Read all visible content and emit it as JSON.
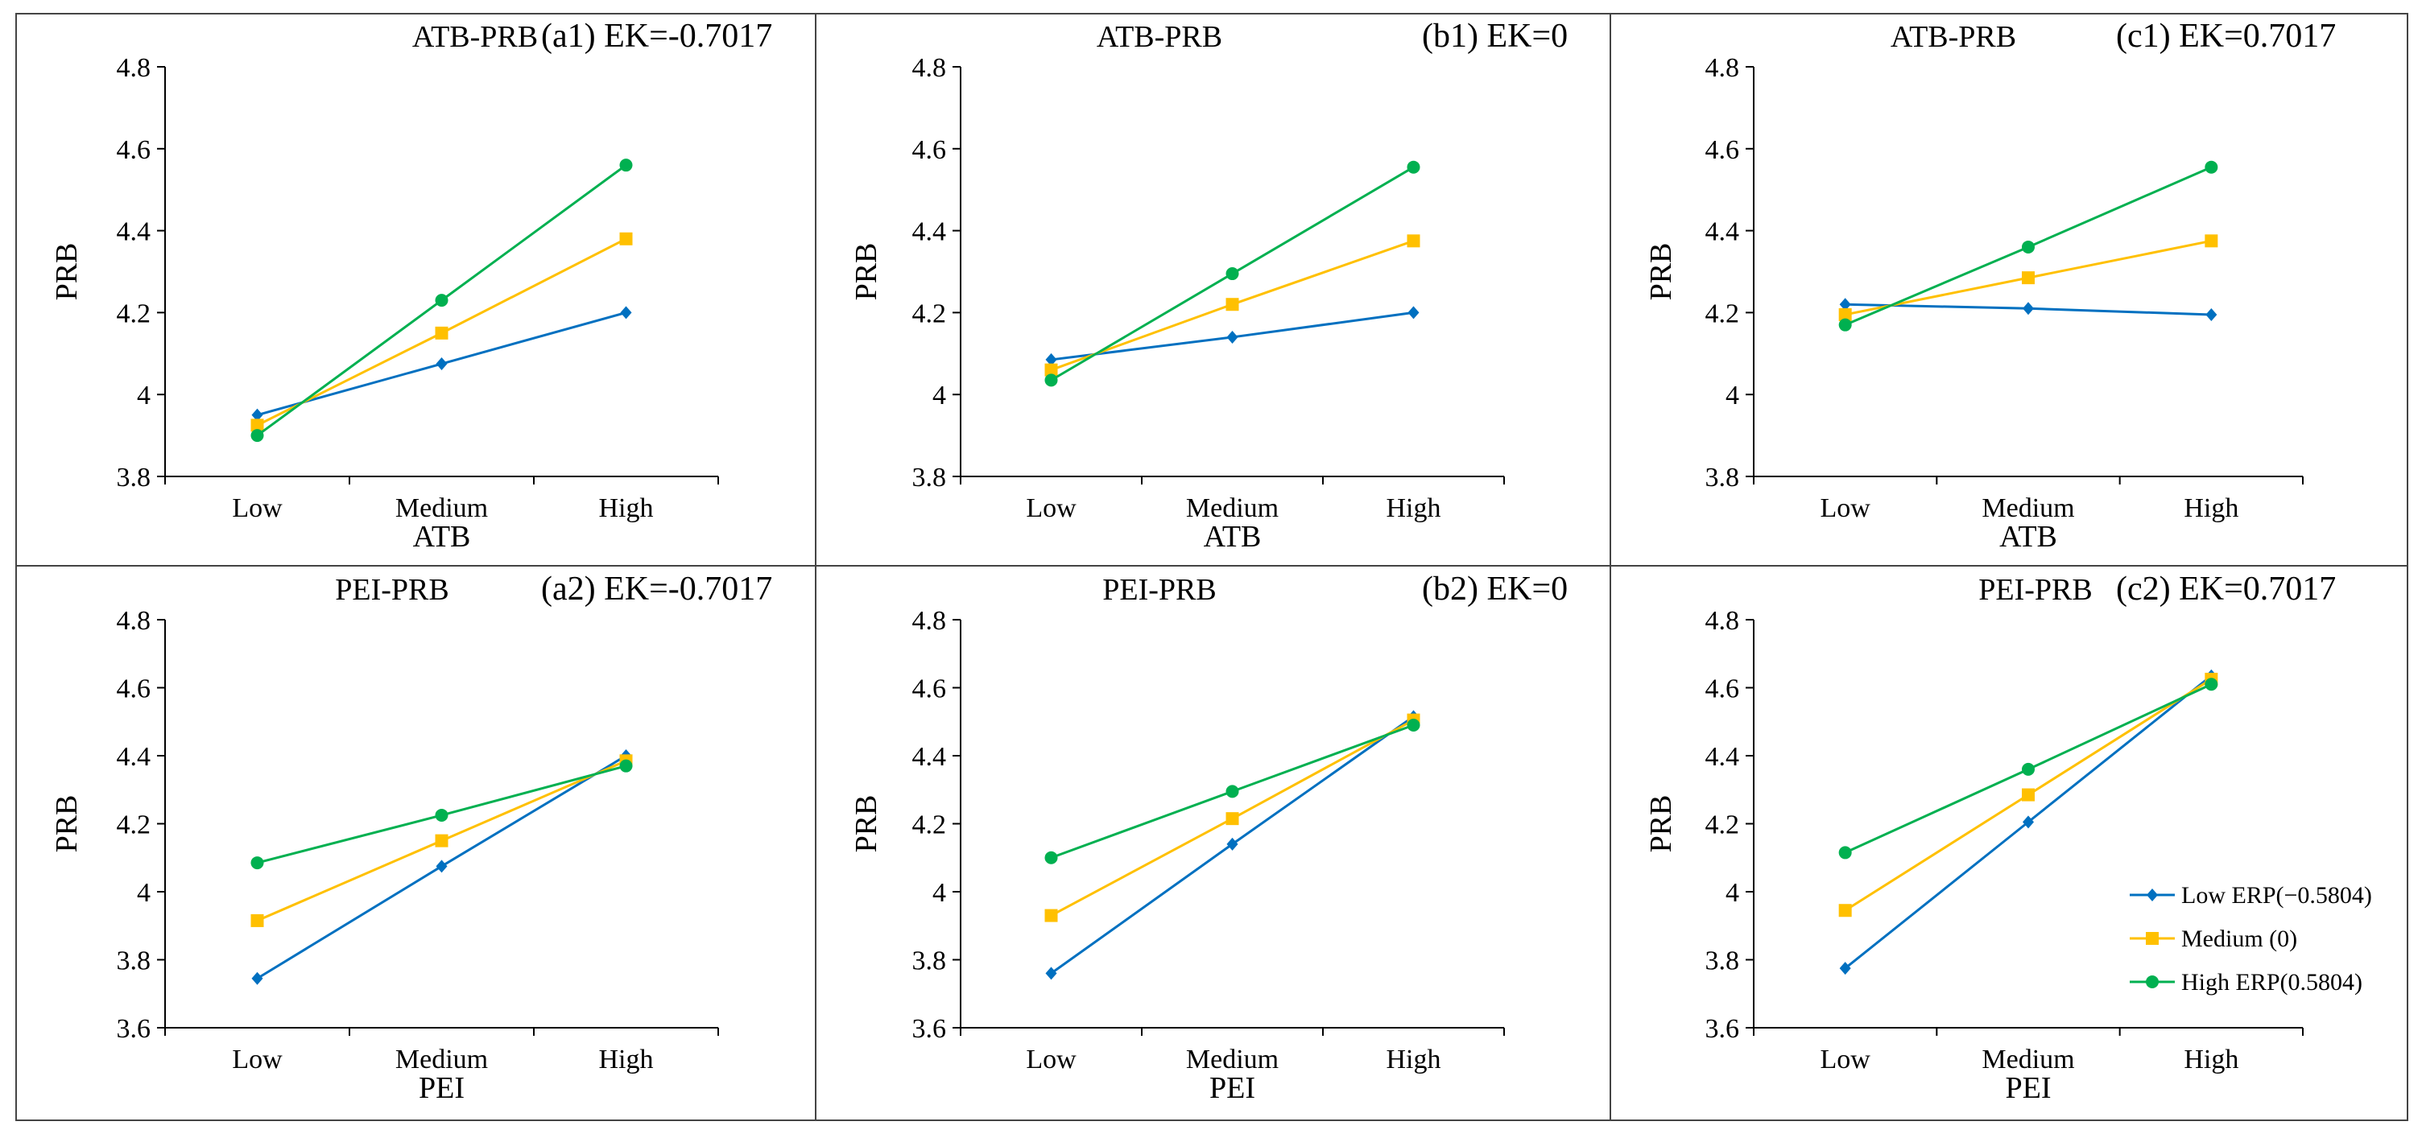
{
  "chart_data": [
    {
      "id": "a1",
      "type": "line",
      "title": "ATB-PRB",
      "tag": "(a1) EK=-0.7017",
      "xlabel": "ATB",
      "ylabel": "PRB",
      "categories": [
        "Low",
        "Medium",
        "High"
      ],
      "ylim": [
        3.8,
        4.8
      ],
      "yticks": [
        "3.8",
        "4",
        "4.2",
        "4.4",
        "4.6",
        "4.8"
      ],
      "series": [
        {
          "name": "Low ERP(−0.5804)",
          "values": [
            3.95,
            4.075,
            4.2
          ]
        },
        {
          "name": "Medium (0)",
          "values": [
            3.925,
            4.15,
            4.38
          ]
        },
        {
          "name": "High ERP(0.5804)",
          "values": [
            3.9,
            4.23,
            4.56
          ]
        }
      ]
    },
    {
      "id": "b1",
      "type": "line",
      "title": "ATB-PRB",
      "tag": "(b1) EK=0",
      "xlabel": "ATB",
      "ylabel": "PRB",
      "categories": [
        "Low",
        "Medium",
        "High"
      ],
      "ylim": [
        3.8,
        4.8
      ],
      "yticks": [
        "3.8",
        "4",
        "4.2",
        "4.4",
        "4.6",
        "4.8"
      ],
      "series": [
        {
          "name": "Low ERP(−0.5804)",
          "values": [
            4.085,
            4.14,
            4.2
          ]
        },
        {
          "name": "Medium (0)",
          "values": [
            4.06,
            4.22,
            4.375
          ]
        },
        {
          "name": "High ERP(0.5804)",
          "values": [
            4.035,
            4.295,
            4.555
          ]
        }
      ]
    },
    {
      "id": "c1",
      "type": "line",
      "title": "ATB-PRB",
      "tag": "(c1)  EK=0.7017",
      "xlabel": "ATB",
      "ylabel": "PRB",
      "categories": [
        "Low",
        "Medium",
        "High"
      ],
      "ylim": [
        3.8,
        4.8
      ],
      "yticks": [
        "3.8",
        "4",
        "4.2",
        "4.4",
        "4.6",
        "4.8"
      ],
      "series": [
        {
          "name": "Low ERP(−0.5804)",
          "values": [
            4.22,
            4.21,
            4.195
          ]
        },
        {
          "name": "Medium (0)",
          "values": [
            4.195,
            4.285,
            4.375
          ]
        },
        {
          "name": "High ERP(0.5804)",
          "values": [
            4.17,
            4.36,
            4.555
          ]
        }
      ]
    },
    {
      "id": "a2",
      "type": "line",
      "title": "PEI-PRB",
      "tag": "(a2) EK=-0.7017",
      "xlabel": "PEI",
      "ylabel": "PRB",
      "categories": [
        "Low",
        "Medium",
        "High"
      ],
      "ylim": [
        3.6,
        4.8
      ],
      "yticks": [
        "3.6",
        "3.8",
        "4",
        "4.2",
        "4.4",
        "4.6",
        "4.8"
      ],
      "series": [
        {
          "name": "Low ERP(−0.5804)",
          "values": [
            3.745,
            4.075,
            4.4
          ]
        },
        {
          "name": "Medium (0)",
          "values": [
            3.915,
            4.15,
            4.385
          ]
        },
        {
          "name": "High ERP(0.5804)",
          "values": [
            4.085,
            4.225,
            4.37
          ]
        }
      ]
    },
    {
      "id": "b2",
      "type": "line",
      "title": "PEI-PRB",
      "tag": "(b2) EK=0",
      "xlabel": "PEI",
      "ylabel": "PRB",
      "categories": [
        "Low",
        "Medium",
        "High"
      ],
      "ylim": [
        3.6,
        4.8
      ],
      "yticks": [
        "3.6",
        "3.8",
        "4",
        "4.2",
        "4.4",
        "4.6",
        "4.8"
      ],
      "series": [
        {
          "name": "Low ERP(−0.5804)",
          "values": [
            3.76,
            4.14,
            4.515
          ]
        },
        {
          "name": "Medium (0)",
          "values": [
            3.93,
            4.215,
            4.505
          ]
        },
        {
          "name": "High ERP(0.5804)",
          "values": [
            4.1,
            4.295,
            4.49
          ]
        }
      ]
    },
    {
      "id": "c2",
      "type": "line",
      "title": "PEI-PRB",
      "tag": "(c2)  EK=0.7017",
      "xlabel": "PEI",
      "ylabel": "PRB",
      "categories": [
        "Low",
        "Medium",
        "High"
      ],
      "ylim": [
        3.6,
        4.8
      ],
      "yticks": [
        "3.6",
        "3.8",
        "4",
        "4.2",
        "4.4",
        "4.6",
        "4.8"
      ],
      "legend": "bottom-right",
      "series": [
        {
          "name": "Low ERP(−0.5804)",
          "values": [
            3.775,
            4.205,
            4.635
          ]
        },
        {
          "name": "Medium (0)",
          "values": [
            3.945,
            4.285,
            4.625
          ]
        },
        {
          "name": "High ERP(0.5804)",
          "values": [
            4.115,
            4.36,
            4.61
          ]
        }
      ]
    }
  ],
  "legend": {
    "items": [
      {
        "label": "Low ERP(−0.5804)",
        "color": "#0070C0",
        "marker": "diamond"
      },
      {
        "label": "Medium (0)",
        "color": "#FFC000",
        "marker": "square"
      },
      {
        "label": "High ERP(0.5804)",
        "color": "#00B050",
        "marker": "circle"
      }
    ]
  }
}
